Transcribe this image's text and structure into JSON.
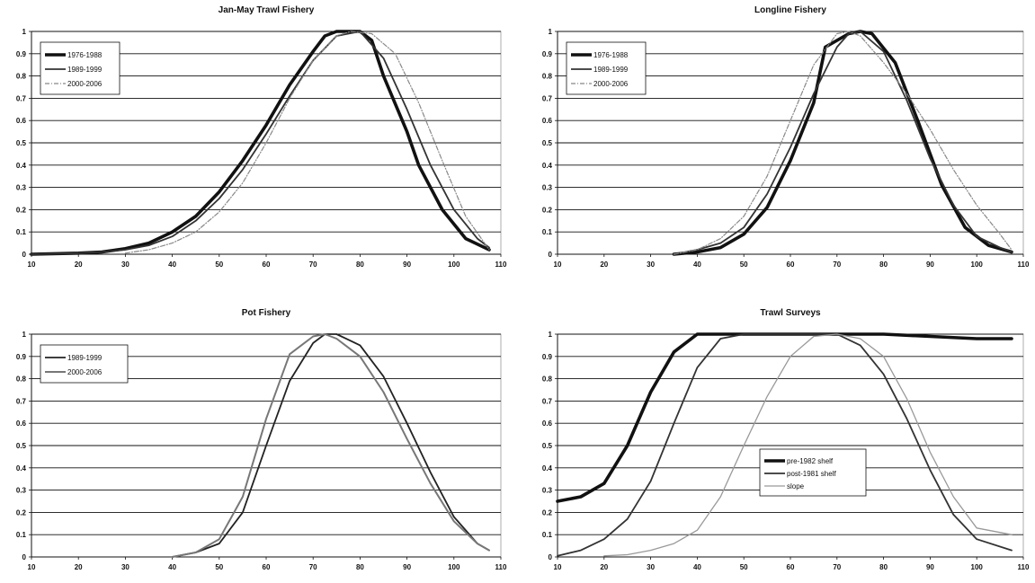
{
  "chart_data": [
    {
      "type": "line",
      "title": "Jan-May Trawl Fishery",
      "xlim": [
        10,
        110
      ],
      "ylim": [
        0,
        1
      ],
      "xticks": [
        10,
        20,
        30,
        40,
        50,
        60,
        70,
        80,
        90,
        100,
        110
      ],
      "yticks": [
        0,
        0.1,
        0.2,
        0.3,
        0.4,
        0.5,
        0.6,
        0.7,
        0.8,
        0.9,
        1
      ],
      "grid": true,
      "legend_position": "top-left",
      "series": [
        {
          "name": "1976-1988",
          "style": "thick",
          "color": "#111111",
          "x": [
            10,
            20,
            25,
            30,
            35,
            40,
            45,
            50,
            55,
            60,
            65,
            70,
            72.5,
            75,
            80,
            82.5,
            85,
            90,
            92.5,
            97.5,
            102.5,
            107.5
          ],
          "y": [
            0,
            0.005,
            0.01,
            0.025,
            0.05,
            0.1,
            0.17,
            0.28,
            0.42,
            0.58,
            0.76,
            0.91,
            0.98,
            1,
            1,
            0.96,
            0.8,
            0.55,
            0.4,
            0.2,
            0.07,
            0.02
          ]
        },
        {
          "name": "1989-1999",
          "style": "medium",
          "color": "#333333",
          "x": [
            10,
            20,
            25,
            30,
            35,
            40,
            45,
            50,
            55,
            60,
            65,
            70,
            75,
            80,
            85,
            90,
            95,
            100,
            105,
            107.5
          ],
          "y": [
            0,
            0.005,
            0.01,
            0.02,
            0.04,
            0.08,
            0.15,
            0.25,
            0.38,
            0.54,
            0.71,
            0.87,
            0.98,
            1,
            0.88,
            0.65,
            0.4,
            0.2,
            0.07,
            0.03
          ]
        },
        {
          "name": "2000-2006",
          "style": "thin-dashed",
          "color": "#888888",
          "x": [
            30,
            35,
            40,
            45,
            50,
            55,
            60,
            65,
            70,
            75,
            78,
            82.5,
            87.5,
            92.5,
            97.5,
            102.5,
            107.5
          ],
          "y": [
            0.005,
            0.02,
            0.05,
            0.1,
            0.19,
            0.32,
            0.5,
            0.7,
            0.87,
            0.98,
            1,
            0.99,
            0.9,
            0.68,
            0.42,
            0.17,
            0.02
          ]
        }
      ]
    },
    {
      "type": "line",
      "title": "Longline Fishery",
      "xlim": [
        10,
        110
      ],
      "ylim": [
        0,
        1
      ],
      "xticks": [
        10,
        20,
        30,
        40,
        50,
        60,
        70,
        80,
        90,
        100,
        110
      ],
      "yticks": [
        0,
        0.1,
        0.2,
        0.3,
        0.4,
        0.5,
        0.6,
        0.7,
        0.8,
        0.9,
        1
      ],
      "grid": true,
      "legend_position": "top-left",
      "series": [
        {
          "name": "1976-1988",
          "style": "thick",
          "color": "#111111",
          "x": [
            35,
            40,
            45,
            50,
            55,
            60,
            65,
            67.5,
            72.5,
            75,
            77.5,
            82.5,
            87.5,
            92.5,
            97.5,
            102.5,
            107.5
          ],
          "y": [
            0,
            0.01,
            0.03,
            0.09,
            0.21,
            0.42,
            0.68,
            0.93,
            0.99,
            1,
            0.99,
            0.86,
            0.59,
            0.31,
            0.12,
            0.04,
            0.01
          ]
        },
        {
          "name": "1989-1999",
          "style": "medium",
          "color": "#333333",
          "x": [
            35,
            40,
            45,
            50,
            55,
            60,
            65,
            70,
            72.5,
            75,
            80,
            85,
            90,
            95,
            100,
            105,
            107.5
          ],
          "y": [
            0,
            0.02,
            0.05,
            0.12,
            0.27,
            0.48,
            0.72,
            0.93,
            0.99,
            1,
            0.91,
            0.69,
            0.43,
            0.22,
            0.08,
            0.03,
            0.01
          ]
        },
        {
          "name": "2000-2006",
          "style": "thin-dashed",
          "color": "#888888",
          "x": [
            35,
            40,
            45,
            50,
            55,
            60,
            65,
            70,
            72.5,
            75,
            80,
            85,
            90,
            95,
            100,
            105,
            107.5
          ],
          "y": [
            0,
            0.02,
            0.07,
            0.17,
            0.35,
            0.6,
            0.85,
            0.99,
            1,
            0.98,
            0.86,
            0.72,
            0.56,
            0.38,
            0.22,
            0.09,
            0.02
          ]
        }
      ]
    },
    {
      "type": "line",
      "title": "Pot Fishery",
      "xlim": [
        10,
        110
      ],
      "ylim": [
        0,
        1
      ],
      "xticks": [
        10,
        20,
        30,
        40,
        50,
        60,
        70,
        80,
        90,
        100,
        110
      ],
      "yticks": [
        0,
        0.1,
        0.2,
        0.3,
        0.4,
        0.5,
        0.6,
        0.7,
        0.8,
        0.9,
        1
      ],
      "grid": true,
      "legend_position": "top-left",
      "series": [
        {
          "name": "1989-1999",
          "style": "medium",
          "color": "#222222",
          "x": [
            40,
            45,
            50,
            55,
            60,
            65,
            70,
            72.5,
            75,
            80,
            85,
            90,
            95,
            100,
            105,
            107.5
          ],
          "y": [
            0,
            0.02,
            0.06,
            0.2,
            0.5,
            0.79,
            0.96,
            1,
            1,
            0.95,
            0.81,
            0.6,
            0.38,
            0.18,
            0.06,
            0.03
          ]
        },
        {
          "name": "2000-2006",
          "style": "medium-grey",
          "color": "#777777",
          "x": [
            40,
            45,
            50,
            55,
            60,
            65,
            70,
            72.5,
            75,
            80,
            85,
            90,
            95,
            100,
            105,
            107.5
          ],
          "y": [
            0,
            0.02,
            0.08,
            0.27,
            0.62,
            0.91,
            0.99,
            1,
            0.98,
            0.9,
            0.74,
            0.53,
            0.33,
            0.16,
            0.06,
            0.03
          ]
        }
      ]
    },
    {
      "type": "line",
      "title": "Trawl Surveys",
      "xlim": [
        10,
        110
      ],
      "ylim": [
        0,
        1
      ],
      "xticks": [
        10,
        20,
        30,
        40,
        50,
        60,
        70,
        80,
        90,
        100,
        110
      ],
      "yticks": [
        0,
        0.1,
        0.2,
        0.3,
        0.4,
        0.5,
        0.6,
        0.7,
        0.8,
        0.9,
        1
      ],
      "grid": true,
      "legend_position": "center-right",
      "series": [
        {
          "name": "pre-1982 shelf",
          "style": "thick",
          "color": "#111111",
          "x": [
            10,
            15,
            20,
            25,
            30,
            35,
            40,
            45,
            50,
            60,
            70,
            80,
            90,
            100,
            107.5
          ],
          "y": [
            0.25,
            0.27,
            0.33,
            0.5,
            0.74,
            0.92,
            1,
            1,
            1,
            1,
            1,
            1,
            0.99,
            0.98,
            0.98
          ]
        },
        {
          "name": "post-1981 shelf",
          "style": "medium",
          "color": "#333333",
          "x": [
            10,
            15,
            20,
            25,
            30,
            35,
            40,
            45,
            50,
            55,
            60,
            65,
            70,
            75,
            80,
            85,
            90,
            95,
            100,
            107.5
          ],
          "y": [
            0.005,
            0.03,
            0.08,
            0.17,
            0.34,
            0.6,
            0.85,
            0.98,
            1,
            1,
            1,
            1,
            1,
            0.95,
            0.82,
            0.62,
            0.39,
            0.19,
            0.08,
            0.03
          ]
        },
        {
          "name": "slope",
          "style": "thin",
          "color": "#999999",
          "x": [
            20,
            25,
            30,
            35,
            40,
            45,
            50,
            55,
            60,
            65,
            70,
            75,
            80,
            85,
            90,
            95,
            100,
            107.5
          ],
          "y": [
            0.005,
            0.01,
            0.03,
            0.06,
            0.12,
            0.27,
            0.5,
            0.72,
            0.9,
            0.99,
            1,
            0.98,
            0.9,
            0.71,
            0.47,
            0.27,
            0.13,
            0.1
          ]
        }
      ]
    }
  ]
}
